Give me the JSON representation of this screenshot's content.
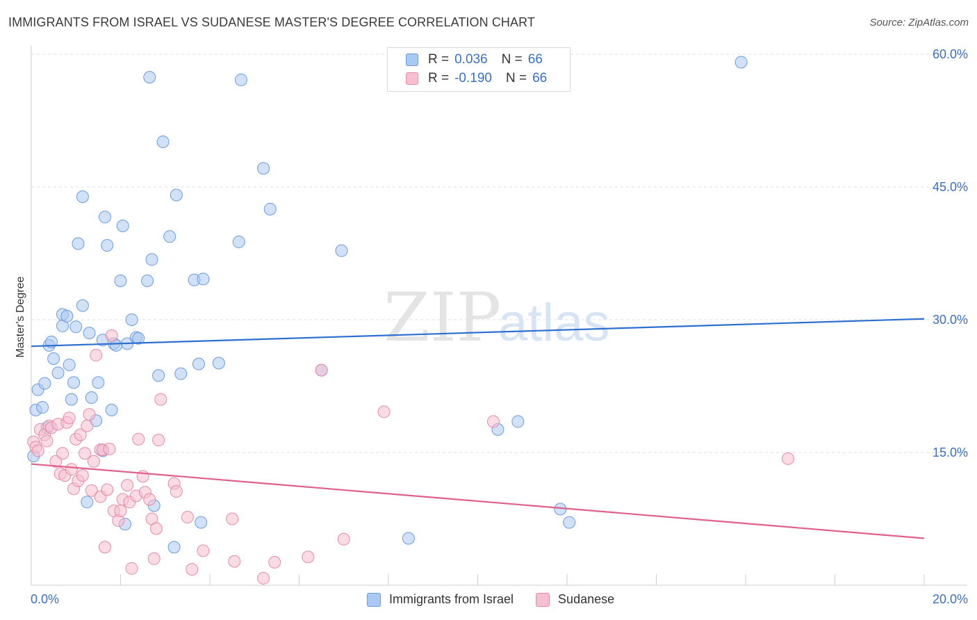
{
  "title": "IMMIGRANTS FROM ISRAEL VS SUDANESE MASTER'S DEGREE CORRELATION CHART",
  "source": "Source: ZipAtlas.com",
  "watermark": {
    "zip": "ZIP",
    "atlas": "atlas"
  },
  "legend": {
    "rows": [
      {
        "r_label": "R =",
        "r_value": "0.036",
        "n_label": "N =",
        "n_value": "66",
        "color": "#a9c8f2",
        "border": "#6a9be0"
      },
      {
        "r_label": "R =",
        "r_value": "-0.190",
        "n_label": "N =",
        "n_value": "66",
        "color": "#f7bfd0",
        "border": "#e58aa8"
      }
    ]
  },
  "bottom_legend": [
    {
      "label": "Immigrants from Israel",
      "color": "#a9c8f2",
      "border": "#6a9be0"
    },
    {
      "label": "Sudanese",
      "color": "#f7bfd0",
      "border": "#e58aa8"
    }
  ],
  "chart_data": {
    "type": "scatter",
    "title": "IMMIGRANTS FROM ISRAEL VS SUDANESE MASTER'S DEGREE CORRELATION CHART",
    "xlabel": "",
    "ylabel": "Master's Degree",
    "xlim": [
      0,
      20
    ],
    "ylim": [
      0,
      60
    ],
    "x_tick_labels": [
      "0.0%",
      "20.0%"
    ],
    "y_ticks": [
      15,
      30,
      45,
      60
    ],
    "y_tick_labels": [
      "15.0%",
      "30.0%",
      "45.0%",
      "60.0%"
    ],
    "grid": true,
    "series": [
      {
        "name": "Immigrants from Israel",
        "color": "#a9c8f2",
        "stroke": "#6a9be0",
        "trend": {
          "x": [
            0,
            20
          ],
          "y": [
            27.0,
            30.1
          ],
          "color": "#2d6fd0"
        },
        "points": [
          [
            0.05,
            14.6
          ],
          [
            0.1,
            19.8
          ],
          [
            0.15,
            22.1
          ],
          [
            0.25,
            20.1
          ],
          [
            0.3,
            22.8
          ],
          [
            0.35,
            17.8
          ],
          [
            0.4,
            27.1
          ],
          [
            0.45,
            27.5
          ],
          [
            0.5,
            25.6
          ],
          [
            0.6,
            24.0
          ],
          [
            0.7,
            29.3
          ],
          [
            0.7,
            30.6
          ],
          [
            0.8,
            30.4
          ],
          [
            0.85,
            24.9
          ],
          [
            0.9,
            21.0
          ],
          [
            0.95,
            22.9
          ],
          [
            1.0,
            29.2
          ],
          [
            1.05,
            38.6
          ],
          [
            1.15,
            31.6
          ],
          [
            1.15,
            43.9
          ],
          [
            1.25,
            9.4
          ],
          [
            1.3,
            28.5
          ],
          [
            1.35,
            21.2
          ],
          [
            1.45,
            18.6
          ],
          [
            1.5,
            22.9
          ],
          [
            1.6,
            15.2
          ],
          [
            1.6,
            27.7
          ],
          [
            1.65,
            41.6
          ],
          [
            1.7,
            38.4
          ],
          [
            1.8,
            19.8
          ],
          [
            1.85,
            27.3
          ],
          [
            1.9,
            27.1
          ],
          [
            2.0,
            34.4
          ],
          [
            2.05,
            40.6
          ],
          [
            2.1,
            6.9
          ],
          [
            2.15,
            27.3
          ],
          [
            2.25,
            30.0
          ],
          [
            2.35,
            28.0
          ],
          [
            2.4,
            27.9
          ],
          [
            2.6,
            34.4
          ],
          [
            2.65,
            57.4
          ],
          [
            2.7,
            36.8
          ],
          [
            2.75,
            9.0
          ],
          [
            2.85,
            23.7
          ],
          [
            2.95,
            50.1
          ],
          [
            3.1,
            39.4
          ],
          [
            3.2,
            4.3
          ],
          [
            3.25,
            44.1
          ],
          [
            3.35,
            23.9
          ],
          [
            3.65,
            34.5
          ],
          [
            3.75,
            25.0
          ],
          [
            3.8,
            7.1
          ],
          [
            3.85,
            34.6
          ],
          [
            4.2,
            25.1
          ],
          [
            4.65,
            38.8
          ],
          [
            4.7,
            57.1
          ],
          [
            5.2,
            47.1
          ],
          [
            5.35,
            42.5
          ],
          [
            6.5,
            24.3
          ],
          [
            6.95,
            37.8
          ],
          [
            8.45,
            5.3
          ],
          [
            10.45,
            17.6
          ],
          [
            10.9,
            18.5
          ],
          [
            11.85,
            8.6
          ],
          [
            12.05,
            7.1
          ],
          [
            15.9,
            59.1
          ]
        ]
      },
      {
        "name": "Sudanese",
        "color": "#f7bfd0",
        "stroke": "#e58aa8",
        "trend": {
          "x": [
            0,
            20
          ],
          "y": [
            13.7,
            5.3
          ],
          "color": "#e0608a"
        },
        "points": [
          [
            0.05,
            16.2
          ],
          [
            0.1,
            15.6
          ],
          [
            0.15,
            15.2
          ],
          [
            0.2,
            17.6
          ],
          [
            0.3,
            17.0
          ],
          [
            0.35,
            16.3
          ],
          [
            0.4,
            18.0
          ],
          [
            0.45,
            17.8
          ],
          [
            0.55,
            14.0
          ],
          [
            0.6,
            18.2
          ],
          [
            0.65,
            12.6
          ],
          [
            0.7,
            14.9
          ],
          [
            0.75,
            12.4
          ],
          [
            0.8,
            18.4
          ],
          [
            0.85,
            18.9
          ],
          [
            0.9,
            13.1
          ],
          [
            0.95,
            10.9
          ],
          [
            1.0,
            16.5
          ],
          [
            1.05,
            11.8
          ],
          [
            1.1,
            17.0
          ],
          [
            1.15,
            12.4
          ],
          [
            1.2,
            14.9
          ],
          [
            1.25,
            18.0
          ],
          [
            1.3,
            19.3
          ],
          [
            1.35,
            10.7
          ],
          [
            1.4,
            14.0
          ],
          [
            1.45,
            26.0
          ],
          [
            1.55,
            15.3
          ],
          [
            1.55,
            10.0
          ],
          [
            1.6,
            15.3
          ],
          [
            1.65,
            4.3
          ],
          [
            1.7,
            10.8
          ],
          [
            1.75,
            15.4
          ],
          [
            1.8,
            28.2
          ],
          [
            1.85,
            8.4
          ],
          [
            1.95,
            7.3
          ],
          [
            2.0,
            8.4
          ],
          [
            2.05,
            9.7
          ],
          [
            2.15,
            11.3
          ],
          [
            2.2,
            9.4
          ],
          [
            2.25,
            1.9
          ],
          [
            2.35,
            10.1
          ],
          [
            2.4,
            16.5
          ],
          [
            2.5,
            12.3
          ],
          [
            2.55,
            10.5
          ],
          [
            2.65,
            9.7
          ],
          [
            2.7,
            7.5
          ],
          [
            2.75,
            3.0
          ],
          [
            2.8,
            6.4
          ],
          [
            2.85,
            16.4
          ],
          [
            2.9,
            21.0
          ],
          [
            3.2,
            11.5
          ],
          [
            3.25,
            10.6
          ],
          [
            3.5,
            7.7
          ],
          [
            3.6,
            1.8
          ],
          [
            3.85,
            3.9
          ],
          [
            4.5,
            7.5
          ],
          [
            4.55,
            2.7
          ],
          [
            5.2,
            0.8
          ],
          [
            5.45,
            2.6
          ],
          [
            6.2,
            3.2
          ],
          [
            6.5,
            24.3
          ],
          [
            7.0,
            5.2
          ],
          [
            7.9,
            19.6
          ],
          [
            10.35,
            18.5
          ],
          [
            16.95,
            14.3
          ]
        ]
      }
    ]
  }
}
